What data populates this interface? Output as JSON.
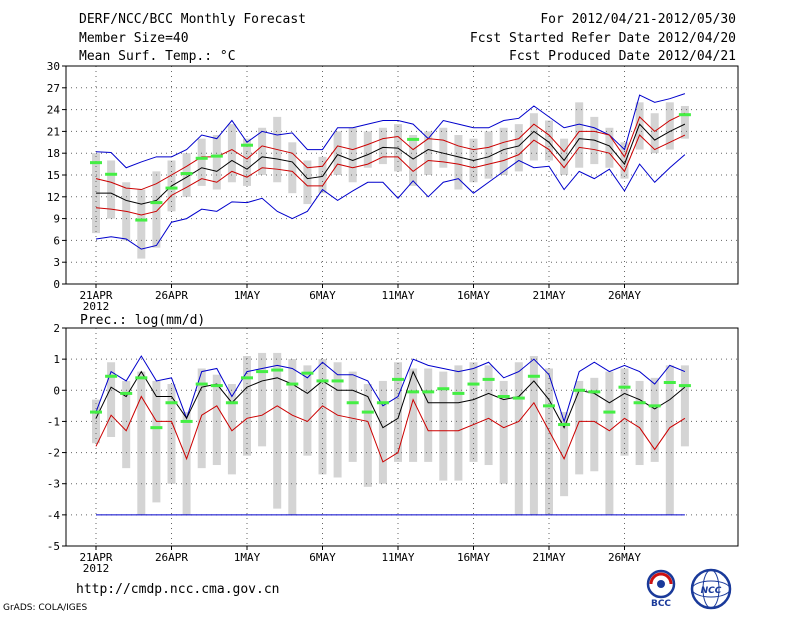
{
  "header": {
    "title": "DERF/NCC/BCC Monthly Forecast",
    "member_size": "Member Size=40",
    "variable": "Mean Surf. Temp.: °C",
    "period": "For 2012/04/21-2012/05/30",
    "refer_date": "Fcst Started Refer Date 2012/04/20",
    "produced_date": "Fcst Produced Date 2012/04/21"
  },
  "footer": {
    "url": "http://cmdp.ncc.cma.gov.cn",
    "credit": "GrADS: COLA/IGES",
    "logo_bcc": "BCC",
    "logo_ncc": "NCC"
  },
  "colors": {
    "ensemble_bar": "#d4d4d4",
    "mean_line": "#000000",
    "spread_line": "#cc0000",
    "extreme_line": "#0000cc",
    "observed_marker": "#44ee44",
    "grid": "#666666"
  },
  "chart_data": [
    {
      "type": "line",
      "title": "Mean Surf. Temp.: °C",
      "ylim": [
        0,
        30
      ],
      "yticks": [
        0,
        3,
        6,
        9,
        12,
        15,
        18,
        21,
        24,
        27,
        30
      ],
      "xticks": [
        {
          "day": 0,
          "label": "21APR",
          "sublabel": "2012"
        },
        {
          "day": 5,
          "label": "26APR"
        },
        {
          "day": 10,
          "label": "1MAY"
        },
        {
          "day": 15,
          "label": "6MAY"
        },
        {
          "day": 20,
          "label": "11MAY"
        },
        {
          "day": 25,
          "label": "16MAY"
        },
        {
          "day": 30,
          "label": "21MAY"
        },
        {
          "day": 35,
          "label": "26MAY"
        }
      ],
      "x": [
        0,
        1,
        2,
        3,
        4,
        5,
        6,
        7,
        8,
        9,
        10,
        11,
        12,
        13,
        14,
        15,
        16,
        17,
        18,
        19,
        20,
        21,
        22,
        23,
        24,
        25,
        26,
        27,
        28,
        29,
        30,
        31,
        32,
        33,
        34,
        35,
        36,
        37,
        38,
        39
      ],
      "series": [
        {
          "name": "ensemble_max",
          "values": [
            18.2,
            18.1,
            16,
            16.8,
            17.5,
            17.5,
            18.5,
            20.5,
            20,
            22.5,
            19.5,
            21,
            20.5,
            20.8,
            18.5,
            18.5,
            21.5,
            21.5,
            22,
            22.5,
            22.5,
            22,
            20,
            22.5,
            22,
            21.5,
            21.5,
            22.5,
            22.8,
            24.5,
            23,
            21.5,
            22,
            21.5,
            20.5,
            18.5,
            26,
            25,
            25.5,
            26.2
          ]
        },
        {
          "name": "upper_spread",
          "values": [
            14.5,
            14,
            13.2,
            13,
            13.8,
            15,
            16.2,
            17.5,
            17.5,
            18.5,
            17.2,
            19,
            18.5,
            18,
            16,
            16.2,
            19,
            18.5,
            19.2,
            20,
            20.3,
            18.5,
            20,
            19.8,
            19,
            18.5,
            18.8,
            19.5,
            20,
            22,
            20.5,
            18.2,
            21,
            21,
            20.5,
            17.5,
            23,
            21,
            22.5,
            23.5
          ]
        },
        {
          "name": "ensemble_mean",
          "values": [
            12.5,
            12.5,
            11.5,
            11,
            11.5,
            13.5,
            14.7,
            16,
            15.5,
            17,
            15.8,
            17.5,
            17.2,
            16.8,
            14.5,
            14.8,
            17.8,
            17,
            17.8,
            18.8,
            18.7,
            17.2,
            18.5,
            18,
            17.5,
            17,
            17.5,
            18.5,
            19,
            21,
            19.5,
            17,
            20,
            19.8,
            19,
            16.5,
            22,
            19.8,
            21,
            22
          ]
        },
        {
          "name": "lower_spread",
          "values": [
            10.5,
            10.3,
            10,
            9.5,
            10,
            12.2,
            13.3,
            14.5,
            14,
            15.5,
            14.7,
            16,
            15.8,
            15.5,
            13.5,
            13.5,
            16.5,
            16,
            16.5,
            17.5,
            17.5,
            15.5,
            17,
            16.8,
            16.5,
            16,
            16.5,
            17,
            17.8,
            19.8,
            18.5,
            16,
            18.8,
            18.5,
            18,
            15.5,
            20.5,
            18.5,
            19.5,
            20.5
          ]
        },
        {
          "name": "ensemble_min",
          "values": [
            6.2,
            6.5,
            6.2,
            4.8,
            5.3,
            8.5,
            9,
            10.3,
            10,
            11.3,
            11.2,
            11.8,
            10,
            9,
            10,
            13,
            11.5,
            12.8,
            14,
            14,
            11.8,
            14.2,
            12,
            14,
            14.5,
            12.5,
            14,
            15.5,
            17,
            16,
            16.2,
            13,
            15.5,
            14.5,
            15.8,
            12.8,
            16.5,
            14,
            16,
            17.8
          ]
        },
        {
          "name": "observed",
          "values": [
            16.7,
            15.1,
            null,
            8.8,
            11.2,
            13.2,
            15.2,
            17.3,
            17.6,
            null,
            19.1,
            null,
            null,
            null,
            null,
            null,
            null,
            null,
            null,
            null,
            null,
            19.9,
            null,
            null,
            null,
            null,
            null,
            null,
            null,
            null,
            null,
            null,
            null,
            null,
            null,
            null,
            null,
            null,
            null,
            23.3
          ]
        }
      ],
      "ensemble_bars": [
        [
          7,
          18
        ],
        [
          9,
          17
        ],
        [
          6,
          14
        ],
        [
          3.5,
          13
        ],
        [
          5,
          15.5
        ],
        [
          10,
          17
        ],
        [
          12,
          18
        ],
        [
          13.5,
          20
        ],
        [
          13,
          20.5
        ],
        [
          14,
          22
        ],
        [
          13.5,
          20
        ],
        [
          15,
          21.5
        ],
        [
          14,
          23
        ],
        [
          12.5,
          19.5
        ],
        [
          11,
          17
        ],
        [
          12.5,
          17.5
        ],
        [
          15,
          21
        ],
        [
          14,
          21.5
        ],
        [
          16,
          21
        ],
        [
          16.5,
          21.5
        ],
        [
          15.5,
          22
        ],
        [
          13.5,
          20.5
        ],
        [
          15,
          21
        ],
        [
          16,
          21.5
        ],
        [
          13,
          20.5
        ],
        [
          14,
          20
        ],
        [
          14.5,
          21
        ],
        [
          15,
          21.5
        ],
        [
          15.5,
          22
        ],
        [
          17,
          23.5
        ],
        [
          17,
          22.5
        ],
        [
          15,
          20
        ],
        [
          16,
          25
        ],
        [
          16.5,
          23
        ],
        [
          16,
          21.5
        ],
        [
          14.5,
          19.5
        ],
        [
          18.5,
          25
        ],
        [
          18,
          23.5
        ],
        [
          18.5,
          25
        ],
        [
          20,
          24.5
        ]
      ]
    },
    {
      "type": "line",
      "title": "Prec.: log(mm/d)",
      "ylim": [
        -5,
        2
      ],
      "yticks": [
        -5,
        -4,
        -3,
        -2,
        -1,
        0,
        1,
        2
      ],
      "xticks": [
        {
          "day": 0,
          "label": "21APR",
          "sublabel": "2012"
        },
        {
          "day": 5,
          "label": "26APR"
        },
        {
          "day": 10,
          "label": "1MAY"
        },
        {
          "day": 15,
          "label": "6MAY"
        },
        {
          "day": 20,
          "label": "11MAY"
        },
        {
          "day": 25,
          "label": "16MAY"
        },
        {
          "day": 30,
          "label": "21MAY"
        },
        {
          "day": 35,
          "label": "26MAY"
        }
      ],
      "x": [
        0,
        1,
        2,
        3,
        4,
        5,
        6,
        7,
        8,
        9,
        10,
        11,
        12,
        13,
        14,
        15,
        16,
        17,
        18,
        19,
        20,
        21,
        22,
        23,
        24,
        25,
        26,
        27,
        28,
        29,
        30,
        31,
        32,
        33,
        34,
        35,
        36,
        37,
        38,
        39
      ],
      "series": [
        {
          "name": "ensemble_max",
          "values": [
            -0.7,
            0.6,
            0.3,
            1.1,
            0.3,
            0.4,
            -0.9,
            0.6,
            0.7,
            -0.2,
            0.6,
            0.7,
            0.8,
            0.7,
            0.4,
            0.9,
            0.5,
            0.5,
            0.3,
            -0.5,
            -0.2,
            1.0,
            0.8,
            0.7,
            0.6,
            0.7,
            0.9,
            0.4,
            0.6,
            1.0,
            0.5,
            -1.0,
            0.6,
            0.9,
            0.6,
            0.8,
            0.6,
            0.2,
            0.8,
            0.6
          ]
        },
        {
          "name": "ensemble_mean",
          "values": [
            -0.9,
            0.1,
            -0.2,
            0.6,
            -0.2,
            -0.2,
            -0.9,
            0.1,
            0.2,
            -0.4,
            0.1,
            0.3,
            0.4,
            0.2,
            -0.1,
            0.3,
            0.0,
            0.0,
            -0.2,
            -1.2,
            -0.9,
            0.6,
            -0.4,
            -0.4,
            -0.4,
            -0.3,
            -0.1,
            -0.3,
            -0.2,
            0.3,
            -0.3,
            -1.2,
            0.0,
            -0.1,
            -0.4,
            -0.1,
            -0.3,
            -0.6,
            -0.3,
            0.1
          ]
        },
        {
          "name": "lower_spread",
          "values": [
            -1.8,
            -0.8,
            -1.3,
            -0.2,
            -1.0,
            -1.0,
            -2.2,
            -0.8,
            -0.5,
            -1.3,
            -0.9,
            -0.8,
            -0.5,
            -0.8,
            -1.0,
            -0.5,
            -0.8,
            -0.9,
            -1.0,
            -2.3,
            -2.0,
            -0.3,
            -1.3,
            -1.3,
            -1.3,
            -1.1,
            -0.9,
            -1.2,
            -1.0,
            -0.4,
            -1.3,
            -2.2,
            -1.0,
            -1.0,
            -1.3,
            -0.9,
            -1.2,
            -1.9,
            -1.2,
            -0.9
          ]
        },
        {
          "name": "dry_threshold",
          "values": [
            -4,
            -4,
            -4,
            -4,
            -4,
            -4,
            -4,
            -4,
            -4,
            -4,
            -4,
            -4,
            -4,
            -4,
            -4,
            -4,
            -4,
            -4,
            -4,
            -4,
            -4,
            -4,
            -4,
            -4,
            -4,
            -4,
            -4,
            -4,
            -4,
            -4,
            -4,
            -4,
            -4,
            -4,
            -4,
            -4,
            -4,
            -4,
            -4,
            -4
          ]
        },
        {
          "name": "observed",
          "values": [
            -0.7,
            0.45,
            -0.1,
            0.4,
            -1.2,
            -0.4,
            -1.0,
            0.2,
            0.15,
            -0.4,
            0.4,
            0.6,
            0.65,
            0.2,
            0.55,
            0.3,
            0.3,
            -0.4,
            -0.7,
            -0.4,
            0.35,
            -0.05,
            -0.05,
            0.05,
            -0.1,
            0.2,
            0.35,
            -0.2,
            -0.25,
            0.45,
            -0.5,
            -1.1,
            0.0,
            -0.05,
            -0.7,
            0.1,
            -0.4,
            -0.5,
            0.25,
            0.15
          ]
        }
      ],
      "ensemble_bars": [
        [
          -1.7,
          -0.3
        ],
        [
          -1.5,
          0.9
        ],
        [
          -2.5,
          0.3
        ],
        [
          -4,
          0.6
        ],
        [
          -3.6,
          0.3
        ],
        [
          -3,
          0.2
        ],
        [
          -4,
          -0.7
        ],
        [
          -2.5,
          0.7
        ],
        [
          -2.4,
          0.5
        ],
        [
          -2.7,
          0.2
        ],
        [
          -2.1,
          1.1
        ],
        [
          -1.8,
          1.2
        ],
        [
          -3.8,
          1.2
        ],
        [
          -4,
          1.0
        ],
        [
          -2.1,
          0.8
        ],
        [
          -2.7,
          1.0
        ],
        [
          -2.8,
          0.9
        ],
        [
          -2.3,
          0.6
        ],
        [
          -3.1,
          0.2
        ],
        [
          -3.0,
          0.3
        ],
        [
          -2.3,
          0.9
        ],
        [
          -2.3,
          0.7
        ],
        [
          -2.3,
          0.7
        ],
        [
          -2.9,
          0.6
        ],
        [
          -2.9,
          0.8
        ],
        [
          -2.3,
          0.9
        ],
        [
          -2.4,
          0.8
        ],
        [
          -3.0,
          0.3
        ],
        [
          -4,
          0.9
        ],
        [
          -4,
          1.1
        ],
        [
          -4,
          0.7
        ],
        [
          -3.4,
          -0.7
        ],
        [
          -2.7,
          0.3
        ],
        [
          -2.6,
          0.4
        ],
        [
          -4,
          0.6
        ],
        [
          -2.1,
          0.7
        ],
        [
          -2.4,
          0.3
        ],
        [
          -2.3,
          0.4
        ],
        [
          -4,
          0.8
        ],
        [
          -1.8,
          0.8
        ]
      ]
    }
  ]
}
